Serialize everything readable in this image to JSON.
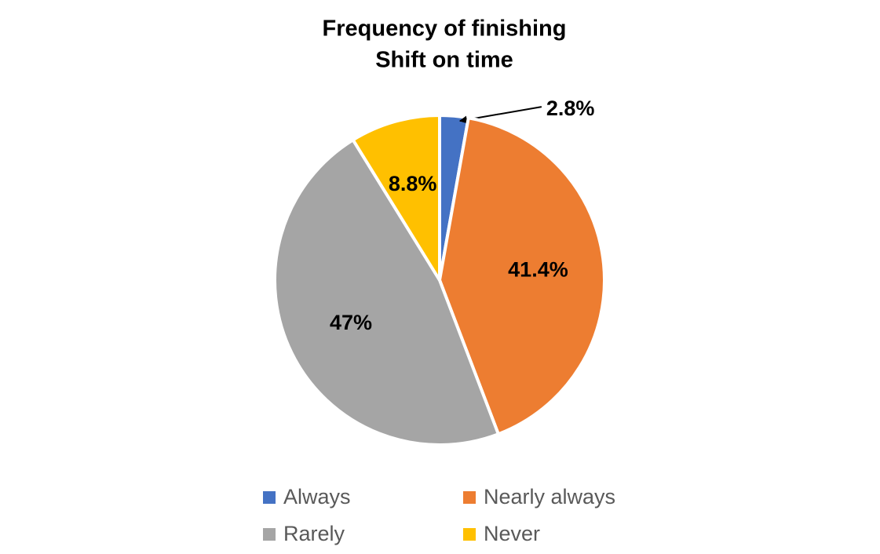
{
  "chart_data": {
    "type": "pie",
    "title": [
      "Frequency of finishing",
      "Shift on time"
    ],
    "categories": [
      "Always",
      "Nearly always",
      "Rarely",
      "Never"
    ],
    "values": [
      2.8,
      41.4,
      47,
      8.8
    ],
    "value_labels": [
      "2.8%",
      "41.4%",
      "47%",
      "8.8%"
    ],
    "colors": [
      "#4472c4",
      "#ed7d31",
      "#a5a5a5",
      "#ffc000"
    ],
    "legend": "bottom"
  }
}
